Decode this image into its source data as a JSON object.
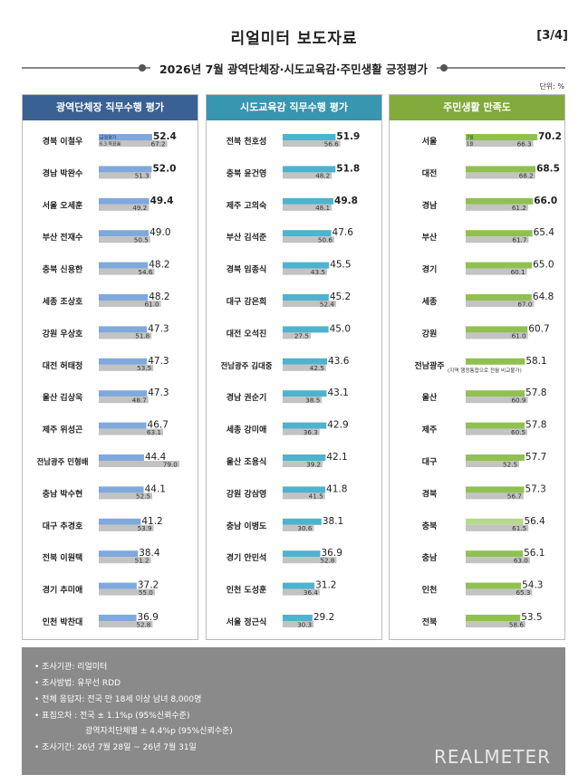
{
  "header": {
    "title": "리얼미터  보도자료",
    "page": "[3/4]"
  },
  "subtitle": "2026년 7월 광역단체장·시도교육감·주민생활 긍정평가",
  "unit": "단위: %",
  "colors": {
    "navy": "#3a6193",
    "teal": "#3896b1",
    "green": "#82aa3c",
    "bar_blue": "#7fa9dd",
    "bar_teal": "#4db3cf",
    "bar_green": "#8fc150",
    "bar_green_light": "#b7d98c",
    "bar_gray": "#c3c3c3"
  },
  "chart_data": [
    {
      "type": "bar",
      "title": "광역단체장 직무수행 평가",
      "legend": [
        "금월평가",
        "6.3 득표율"
      ],
      "categories": [
        "경북 이철우",
        "경남 박완수",
        "서울 오세훈",
        "부산 전재수",
        "충북 신용한",
        "세종 조상호",
        "강원 우상호",
        "대전 허태정",
        "울산 김상욱",
        "제주 위성곤",
        "전남광주 민형배",
        "충남 박수현",
        "대구 추경호",
        "전북 이원택",
        "경기 추미애",
        "인천 박찬대"
      ],
      "series": [
        {
          "name": "금월평가",
          "values": [
            52.4,
            52.0,
            49.4,
            49.0,
            48.2,
            48.2,
            47.3,
            47.3,
            47.3,
            46.7,
            44.4,
            44.1,
            41.2,
            38.4,
            37.2,
            36.9
          ]
        },
        {
          "name": "6.3 득표율",
          "values": [
            67.2,
            51.3,
            49.2,
            50.5,
            54.6,
            61.0,
            51.8,
            53.5,
            48.7,
            63.1,
            79.0,
            52.5,
            53.9,
            51.2,
            55.0,
            52.8
          ]
        }
      ],
      "bold_top": [
        52.4,
        52.0,
        49.4
      ]
    },
    {
      "type": "bar",
      "title": "시도교육감 직무수행 평가",
      "categories": [
        "전북 천호성",
        "충북 윤건영",
        "제주 고의숙",
        "부산 김석준",
        "경북 임종식",
        "대구 강은희",
        "대전 오석진",
        "전남광주 김대중",
        "경남 권순기",
        "세종 강미애",
        "울산 조용식",
        "강원 강삼영",
        "충남 이병도",
        "경기 안민석",
        "인천 도성훈",
        "서울 정근식"
      ],
      "series": [
        {
          "name": "금월",
          "values": [
            51.9,
            51.8,
            49.8,
            47.6,
            45.5,
            45.2,
            45.0,
            43.6,
            43.1,
            42.9,
            42.1,
            41.8,
            38.1,
            36.9,
            31.2,
            29.2
          ]
        },
        {
          "name": "전월",
          "values": [
            56.6,
            48.2,
            48.1,
            50.6,
            43.5,
            52.4,
            27.5,
            42.5,
            38.5,
            36.3,
            39.2,
            41.5,
            30.6,
            52.8,
            36.4,
            30.3
          ]
        }
      ],
      "bold_top": [
        51.9,
        51.8,
        49.8
      ]
    },
    {
      "type": "bar",
      "title": "주민생활 만족도",
      "legend": [
        "7월",
        "1월"
      ],
      "categories": [
        "서울",
        "대전",
        "경남",
        "부산",
        "경기",
        "세종",
        "강원",
        "전남광주",
        "울산",
        "제주",
        "대구",
        "경북",
        "충북",
        "충남",
        "인천",
        "전북"
      ],
      "series": [
        {
          "name": "7월",
          "values": [
            70.2,
            68.5,
            66.0,
            65.4,
            65.0,
            64.8,
            60.7,
            58.1,
            57.8,
            57.8,
            57.7,
            57.3,
            56.4,
            56.1,
            54.3,
            53.5
          ]
        },
        {
          "name": "1월",
          "values": [
            66.3,
            68.2,
            61.2,
            61.7,
            60.1,
            67.0,
            61.0,
            null,
            60.9,
            60.5,
            52.5,
            56.7,
            61.5,
            63.0,
            65.3,
            58.6
          ]
        }
      ],
      "note": "(지역 행정통합으로 전월 비교불가)",
      "bold_top": [
        70.2,
        68.5,
        66.0
      ]
    }
  ],
  "footer": {
    "lines": [
      "• 조사기관: 리얼미터",
      "• 조사방법: 유무선 RDD",
      "• 전체 응답자: 전국 만 18세 이상 남녀 8,000명",
      "• 표집오차 : 전국 ± 1.1%p (95%신뢰수준)",
      "광역자치단체별 ± 4.4%p (95%신뢰수준)",
      "• 조사기간: 26년 7월 28일 ~ 26년 7월 31일"
    ],
    "brand": "REALMETER"
  }
}
